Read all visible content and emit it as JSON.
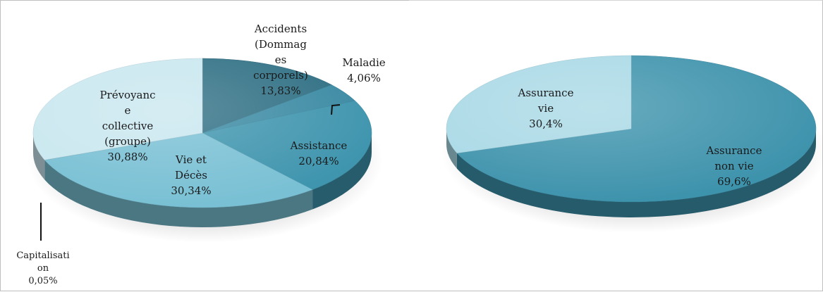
{
  "chart_data": [
    {
      "type": "pie",
      "title": "",
      "slices": [
        {
          "label": "Accidents (Dommages corporels)",
          "label_lines": [
            "Accidents",
            "(Dommag",
            "es",
            "corporels)"
          ],
          "value_text": "13,83%",
          "value": 13.83,
          "color": "#2f6f84"
        },
        {
          "label": "Maladie",
          "label_lines": [
            "Maladie"
          ],
          "value_text": "4,06%",
          "value": 4.06,
          "color": "#3b8aa3"
        },
        {
          "label": "Assistance",
          "label_lines": [
            "Assistance"
          ],
          "value_text": "20,84%",
          "value": 20.84,
          "color": "#3f95ae"
        },
        {
          "label": "Vie et Décès",
          "label_lines": [
            "Vie et",
            "Décès"
          ],
          "value_text": "30,34%",
          "value": 30.34,
          "color": "#79c0d4"
        },
        {
          "label": "Capitalisation",
          "label_lines": [
            "Capitalisati",
            "on"
          ],
          "value_text": "0,05%",
          "value": 0.05,
          "color": "#6db8cf"
        },
        {
          "label": "Prévoyance collective (groupe)",
          "label_lines": [
            "Prévoyanc",
            "e",
            "collective",
            "(groupe)"
          ],
          "value_text": "30,88%",
          "value": 30.88,
          "color": "#c9e7ef"
        }
      ]
    },
    {
      "type": "pie",
      "title": "",
      "slices": [
        {
          "label": "Assurance non vie",
          "label_lines": [
            "Assurance",
            "non vie"
          ],
          "value_text": "69,6%",
          "value": 69.6,
          "color": "#3e93ac"
        },
        {
          "label": "Assurance vie",
          "label_lines": [
            "Assurance",
            "vie"
          ],
          "value_text": "30,4%",
          "value": 30.4,
          "color": "#a9d9e6"
        }
      ]
    }
  ]
}
